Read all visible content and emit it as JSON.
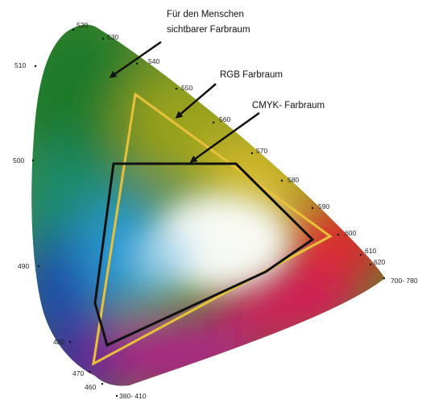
{
  "annotations": {
    "human_line1": "Für den Menschen",
    "human_line2": "sichtbarer Farbraum",
    "rgb": "RGB Farbraum",
    "cmyk": "CMYK- Farbraum"
  },
  "wavelength_labels": {
    "w380_410": "380- 410",
    "w460": "460",
    "w470": "470",
    "w480": "480",
    "w490": "490",
    "w500": "500",
    "w510": "510",
    "w520": "520",
    "w530": "530",
    "w540": "540",
    "w550": "550",
    "w560": "560",
    "w570": "570",
    "w580": "580",
    "w590": "590",
    "w600": "600",
    "w610": "610",
    "w620": "620",
    "w700_780": "700- 780"
  },
  "colors": {
    "rgb_outline": "#e7c13a",
    "cmyk_outline": "#111111",
    "arrow": "#111111"
  }
}
